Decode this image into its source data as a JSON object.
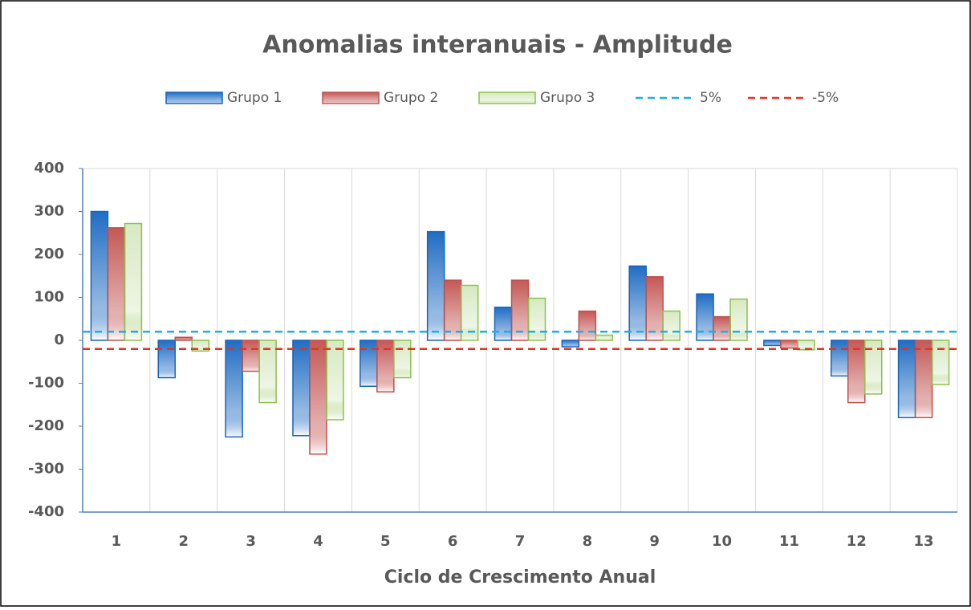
{
  "chart_data": {
    "type": "bar",
    "title": "Anomalias interanuais - Amplitude",
    "x_label": "Ciclo de Crescimento Anual",
    "categories": [
      "1",
      "2",
      "3",
      "4",
      "5",
      "6",
      "7",
      "8",
      "9",
      "10",
      "11",
      "12",
      "13"
    ],
    "series": [
      {
        "name": "Grupo 1",
        "color": "#1565c0",
        "values": [
          300,
          -87,
          -225,
          -222,
          -107,
          253,
          77,
          -15,
          173,
          108,
          -12,
          -83,
          -180
        ]
      },
      {
        "name": "Grupo 2",
        "color": "#c0504d",
        "values": [
          262,
          7,
          -72,
          -265,
          -120,
          140,
          140,
          68,
          148,
          55,
          -18,
          -145,
          -180
        ]
      },
      {
        "name": "Grupo 3",
        "color": "#8dc050",
        "values": [
          272,
          -25,
          -145,
          -185,
          -87,
          128,
          98,
          12,
          68,
          96,
          -22,
          -125,
          -103
        ]
      }
    ],
    "reference_lines": [
      {
        "name": "5%",
        "value": 20,
        "color": "#1cb0e6"
      },
      {
        "name": "-5%",
        "value": -20,
        "color": "#e8331c"
      }
    ],
    "ylim": [
      -400,
      400
    ],
    "yticks": [
      -400,
      -300,
      -200,
      -100,
      0,
      100,
      200,
      300,
      400
    ]
  }
}
